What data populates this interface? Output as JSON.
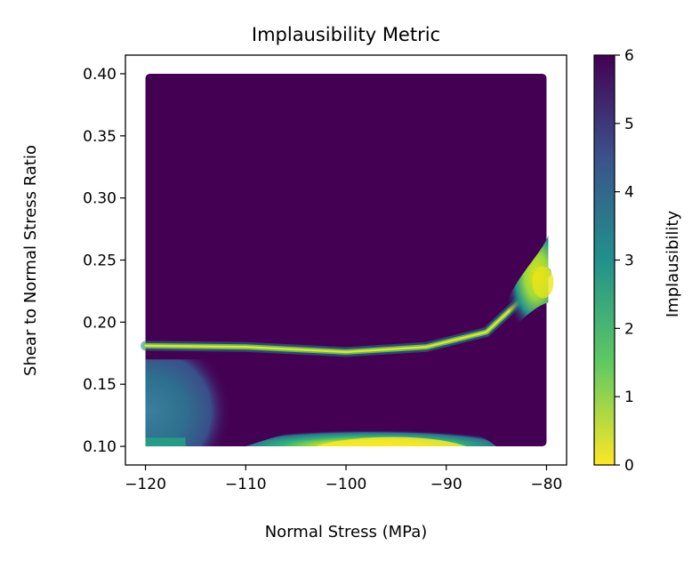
{
  "chart_data": {
    "type": "heatmap",
    "title": "Implausibility Metric",
    "xlabel": "Normal Stress (MPa)",
    "ylabel": "Shear to Normal Stress Ratio",
    "xlim": [
      -122,
      -78
    ],
    "ylim": [
      0.085,
      0.415
    ],
    "xticks": [
      -120,
      -110,
      -100,
      -90,
      -80
    ],
    "xtick_labels": [
      "−120",
      "−110",
      "−100",
      "−90",
      "−80"
    ],
    "yticks": [
      0.1,
      0.15,
      0.2,
      0.25,
      0.3,
      0.35,
      0.4
    ],
    "ytick_labels": [
      "0.10",
      "0.15",
      "0.20",
      "0.25",
      "0.30",
      "0.35",
      "0.40"
    ],
    "data_extent": {
      "x": [
        -120,
        -80
      ],
      "y": [
        0.1,
        0.4
      ]
    },
    "background_value": 6,
    "features": [
      {
        "name": "lower-left region",
        "x": [
          -120,
          -111
        ],
        "y": [
          0.1,
          0.17
        ],
        "value_range": [
          1.5,
          4.5
        ]
      },
      {
        "name": "bottom ridge",
        "x": [
          -110,
          -85
        ],
        "y": [
          0.1,
          0.12
        ],
        "peak_x": -94,
        "min_value": 0
      },
      {
        "name": "diagonal band",
        "points": [
          [
            -120,
            0.181
          ],
          [
            -110,
            0.18
          ],
          [
            -100,
            0.176
          ],
          [
            -92,
            0.18
          ],
          [
            -86,
            0.192
          ],
          [
            -82,
            0.222
          ],
          [
            -80,
            0.24
          ]
        ],
        "value_range": [
          0.5,
          4
        ]
      },
      {
        "name": "right edge region",
        "x": [
          -84,
          -80
        ],
        "y": [
          0.2,
          0.27
        ],
        "value_range": [
          0.5,
          3.5
        ]
      }
    ],
    "colorbar": {
      "label": "Implausibility",
      "colormap": "viridis_r",
      "min": 0,
      "max": 6,
      "ticks": [
        0,
        1,
        2,
        3,
        4,
        5,
        6
      ],
      "tick_labels": [
        "0",
        "1",
        "2",
        "3",
        "4",
        "5",
        "6"
      ],
      "colors": [
        "#fde725",
        "#5ec962",
        "#21918c",
        "#3b528b",
        "#440154"
      ]
    }
  }
}
